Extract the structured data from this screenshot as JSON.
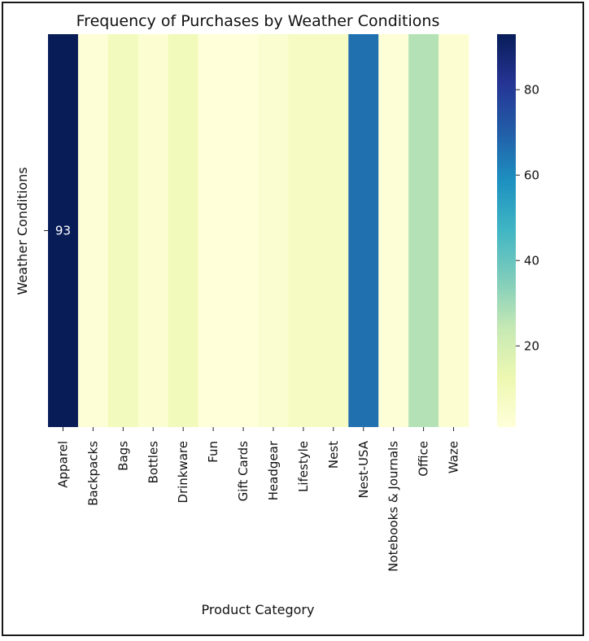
{
  "chart_data": {
    "type": "heatmap",
    "title": "Frequency of Purchases by Weather Conditions",
    "xlabel": "Product Category",
    "ylabel": "Weather Conditions",
    "categories": [
      "Apparel",
      "Backpacks",
      "Bags",
      "Bottles",
      "Drinkware",
      "Fun",
      "Gift Cards",
      "Headgear",
      "Lifestyle",
      "Nest",
      "Nest-USA",
      "Notebooks & Journals",
      "Office",
      "Waze"
    ],
    "rows": [
      ""
    ],
    "values": [
      [
        93,
        2,
        9,
        3,
        10,
        1,
        1,
        4,
        7,
        7,
        66,
        2,
        27,
        3
      ]
    ],
    "annotations": [
      {
        "category": "Apparel",
        "text": "93"
      }
    ],
    "colorbar": {
      "min": 1,
      "max": 93,
      "ticks": [
        20,
        40,
        60,
        80
      ],
      "colormap": "YlGnBu",
      "stops": [
        "#ffffd9",
        "#edf8b1",
        "#c7e9b4",
        "#7fcdbb",
        "#41b6c4",
        "#1d91c0",
        "#225ea8",
        "#253494",
        "#081d58"
      ]
    }
  }
}
